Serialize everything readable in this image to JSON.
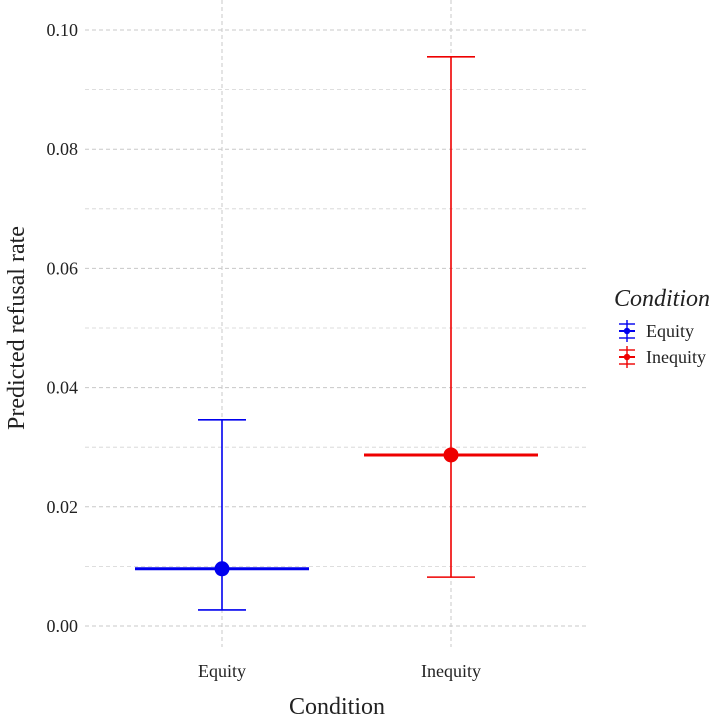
{
  "chart_data": {
    "type": "errorbar",
    "title": "",
    "xlabel": "Condition",
    "ylabel": "Predicted refusal rate",
    "ylim": [
      0,
      0.1
    ],
    "y_ticks": [
      0.0,
      0.02,
      0.04,
      0.06,
      0.08,
      0.1
    ],
    "y_tick_labels": [
      "0.00",
      "0.02",
      "0.04",
      "0.06",
      "0.08",
      "0.10"
    ],
    "categories": [
      "Equity",
      "Inequity"
    ],
    "grid": true,
    "legend": {
      "title": "Condition",
      "position": "right",
      "entries": [
        "Equity",
        "Inequity"
      ]
    },
    "series": [
      {
        "name": "Equity",
        "color": "#0000ee",
        "estimate": 0.0096,
        "lower": 0.0027,
        "upper": 0.0346
      },
      {
        "name": "Inequity",
        "color": "#ee0000",
        "estimate": 0.0287,
        "lower": 0.0082,
        "upper": 0.0955
      }
    ]
  }
}
